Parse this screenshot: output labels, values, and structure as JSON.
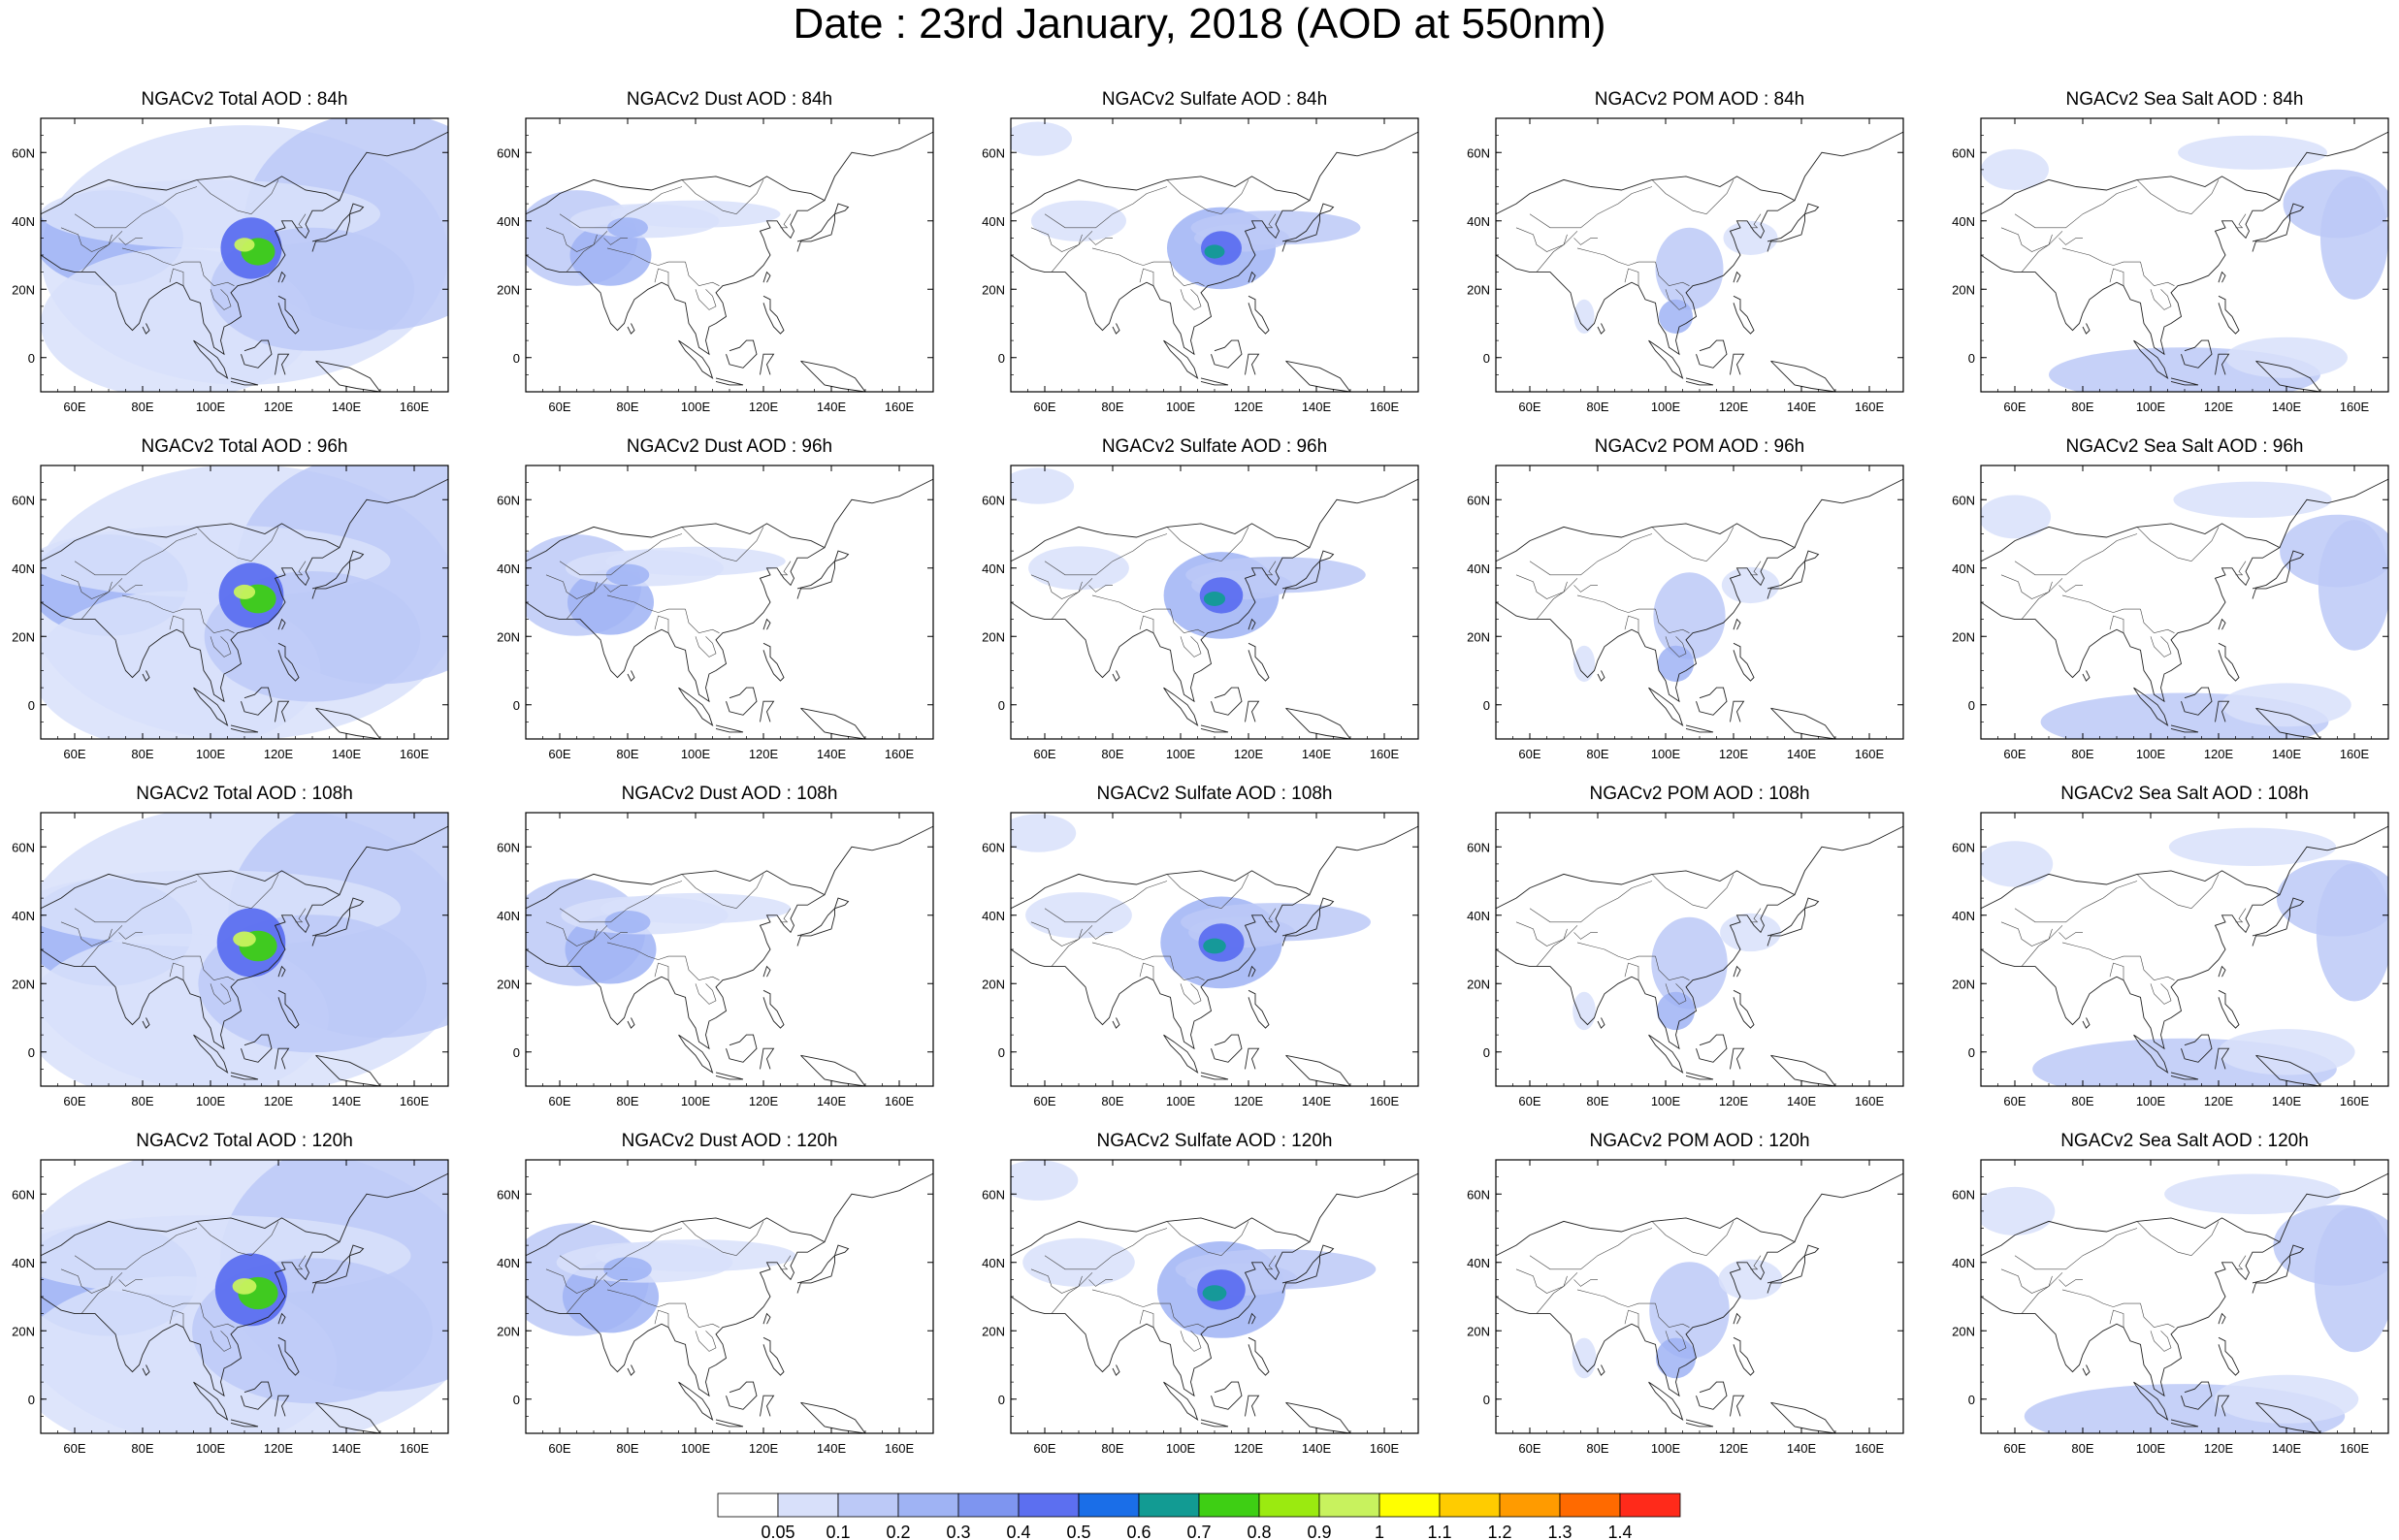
{
  "title": "Date : 23rd January, 2018 (AOD at 550nm)",
  "x_tick_labels": [
    "60E",
    "80E",
    "100E",
    "120E",
    "140E",
    "160E"
  ],
  "y_tick_labels": [
    "60N",
    "40N",
    "20N",
    "0"
  ],
  "x_ticks_deg": [
    60,
    80,
    100,
    120,
    140,
    160
  ],
  "y_ticks_deg": [
    60,
    40,
    20,
    0
  ],
  "map_extent": {
    "lon": [
      50,
      170
    ],
    "lat": [
      -10,
      70
    ]
  },
  "panel_titles": [
    [
      "NGACv2 Total AOD : 84h",
      "NGACv2 Dust AOD : 84h",
      "NGACv2 Sulfate AOD : 84h",
      "NGACv2 POM AOD : 84h",
      "NGACv2 Sea Salt AOD : 84h"
    ],
    [
      "NGACv2 Total AOD : 96h",
      "NGACv2 Dust AOD : 96h",
      "NGACv2 Sulfate AOD : 96h",
      "NGACv2 POM AOD : 96h",
      "NGACv2 Sea Salt AOD : 96h"
    ],
    [
      "NGACv2 Total AOD : 108h",
      "NGACv2 Dust AOD : 108h",
      "NGACv2 Sulfate AOD : 108h",
      "NGACv2 POM AOD : 108h",
      "NGACv2 Sea Salt AOD : 108h"
    ],
    [
      "NGACv2 Total AOD : 120h",
      "NGACv2 Dust AOD : 120h",
      "NGACv2 Sulfate AOD : 120h",
      "NGACv2 POM AOD : 120h",
      "NGACv2 Sea Salt  AOD : 120h"
    ]
  ],
  "colorbar": {
    "labels": [
      "0.05",
      "0.1",
      "0.2",
      "0.3",
      "0.4",
      "0.5",
      "0.6",
      "0.7",
      "0.8",
      "0.9",
      "1",
      "1.1",
      "1.2",
      "1.3",
      "1.4"
    ],
    "colors": [
      "#ffffff",
      "#d8e0fa",
      "#bcc9f7",
      "#9fb3f4",
      "#7e95f0",
      "#5c6ff0",
      "#1a6ee8",
      "#129b93",
      "#3ecf14",
      "#9bea10",
      "#c8f25e",
      "#ffff00",
      "#ffcc00",
      "#ff9b00",
      "#ff6a00",
      "#ff2a1a"
    ]
  }
}
